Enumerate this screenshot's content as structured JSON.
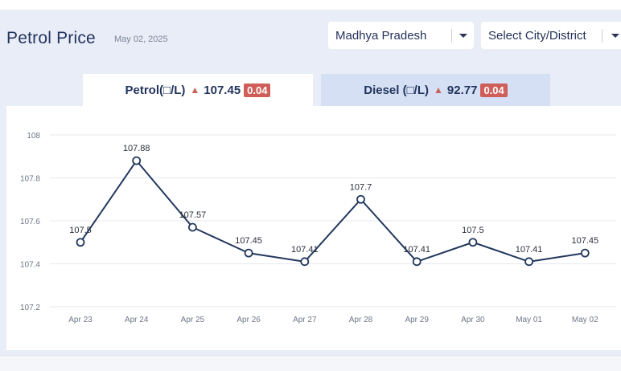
{
  "header": {
    "title": "Petrol Price",
    "date": "May 02, 2025"
  },
  "filters": {
    "state": "Madhya Pradesh",
    "city_placeholder": "Select City/District"
  },
  "tabs": [
    {
      "label": "Petrol(□/L)",
      "price": "107.45",
      "change": "0.04",
      "trend": "up"
    },
    {
      "label": "Diesel (□/L)",
      "price": "92.77",
      "change": "0.04",
      "trend": "up"
    }
  ],
  "colors": {
    "line": "#23385e",
    "badge": "#cf5e58",
    "active_tab": "#ffffff",
    "inactive_tab": "#d5e0f5"
  },
  "chart_data": {
    "type": "line",
    "categories": [
      "Apr 23",
      "Apr 24",
      "Apr 25",
      "Apr 26",
      "Apr 27",
      "Apr 28",
      "Apr 29",
      "Apr 30",
      "May 01",
      "May 02"
    ],
    "series": [
      {
        "values": [
          107.5,
          107.88,
          107.57,
          107.45,
          107.41,
          107.7,
          107.41,
          107.5,
          107.41,
          107.45
        ]
      }
    ],
    "data_labels": [
      "107.5",
      "107.88",
      "107.57",
      "107.45",
      "107.41",
      "107.7",
      "107.41",
      "107.5",
      "107.41",
      "107.45"
    ],
    "yticks": [
      "107.2",
      "107.4",
      "107.6",
      "107.8",
      "108"
    ],
    "ylim": [
      107.2,
      108
    ],
    "grid": true,
    "legend": "none"
  }
}
